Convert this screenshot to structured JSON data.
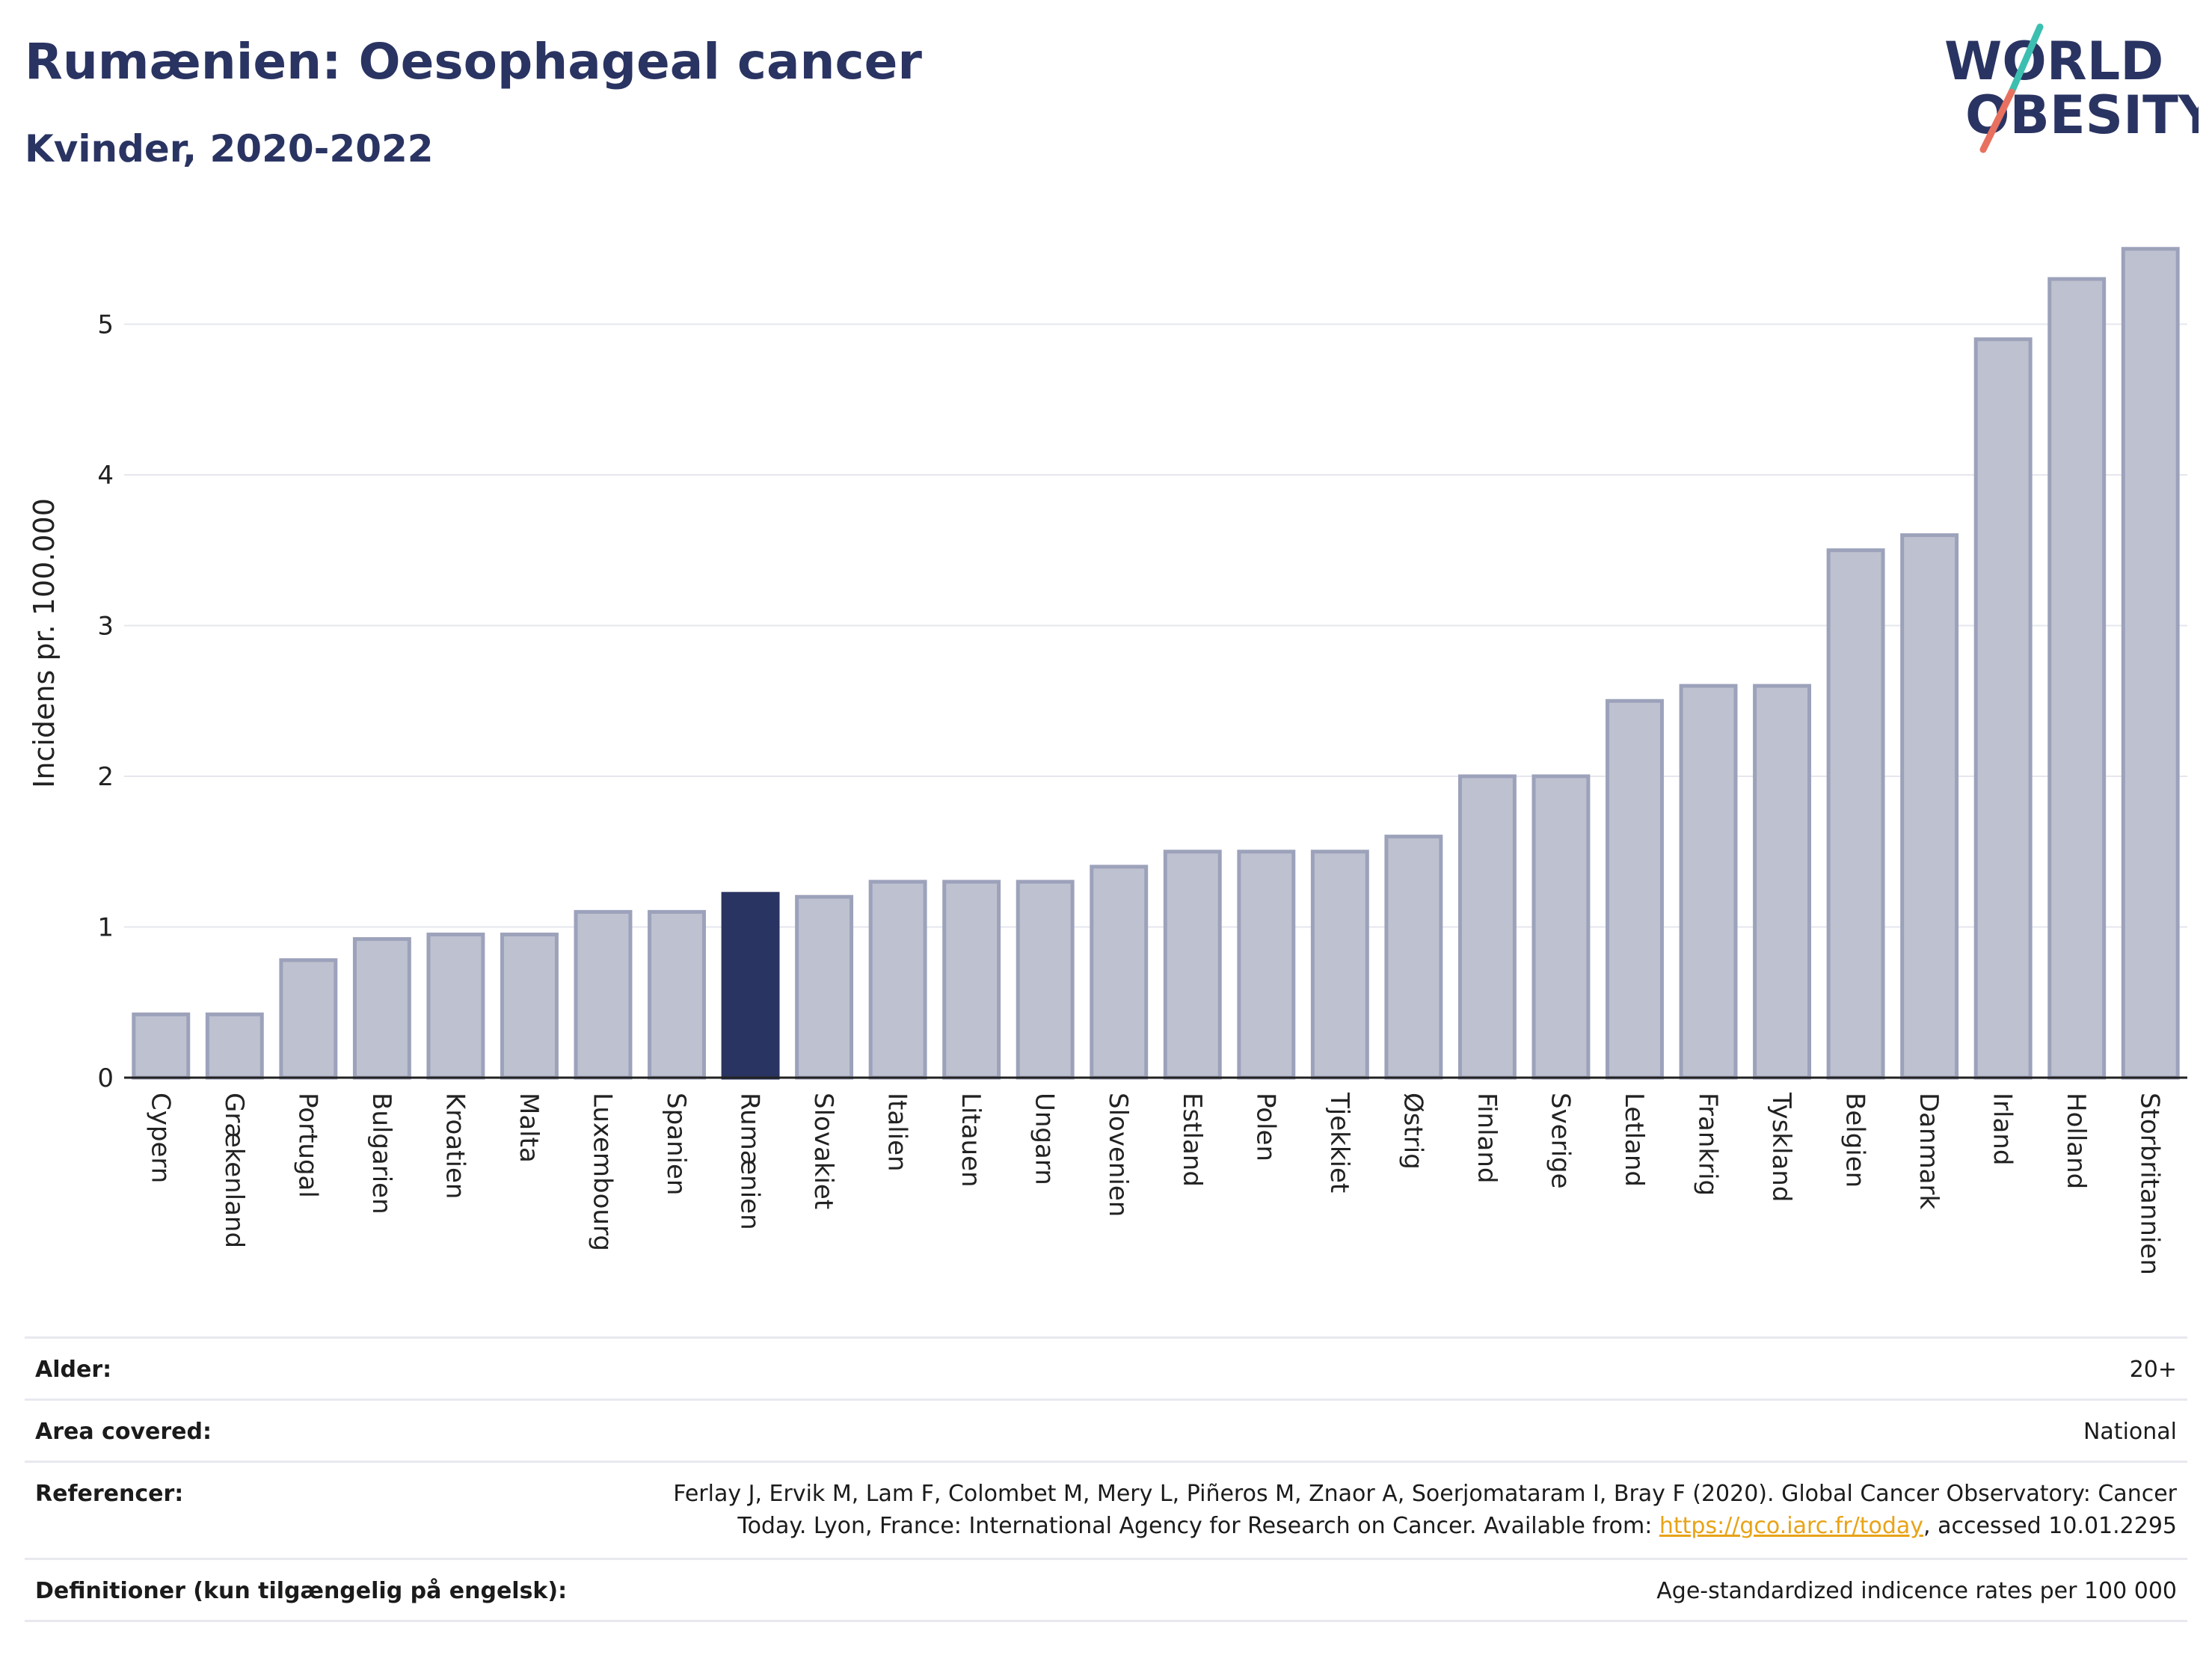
{
  "header": {
    "title": "Rumænien: Oesophageal cancer",
    "subtitle": "Kvinder, 2020-2022"
  },
  "logo": {
    "line1": "WORLD",
    "line2": "OBESITY"
  },
  "colors": {
    "highlight": "#2a3462",
    "bar_fill": "#bec1cf",
    "bar_stroke": "#9da2bb",
    "title": "#2a3462",
    "logo_teal": "#3cbfb0",
    "logo_coral": "#e8705f",
    "link": "#e8a317"
  },
  "chart_data": {
    "type": "bar",
    "categories": [
      "Cypern",
      "Grækenland",
      "Portugal",
      "Bulgarien",
      "Kroatien",
      "Malta",
      "Luxembourg",
      "Spanien",
      "Rumænien",
      "Slovakiet",
      "Italien",
      "Litauen",
      "Ungarn",
      "Slovenien",
      "Estland",
      "Polen",
      "Tjekkiet",
      "Østrig",
      "Finland",
      "Sverige",
      "Letland",
      "Frankrig",
      "Tyskland",
      "Belgien",
      "Danmark",
      "Irland",
      "Holland",
      "Storbritannien"
    ],
    "values": [
      0.42,
      0.42,
      0.78,
      0.92,
      0.95,
      0.95,
      1.1,
      1.1,
      1.22,
      1.2,
      1.3,
      1.3,
      1.3,
      1.4,
      1.5,
      1.5,
      1.5,
      1.6,
      2.0,
      2.0,
      2.5,
      2.6,
      2.6,
      3.5,
      3.6,
      4.9,
      5.3,
      5.5
    ],
    "highlight": "Rumænien",
    "ylabel": "Incidens pr. 100.000",
    "xlabel": "",
    "yticks": [
      "0",
      "1",
      "2",
      "3",
      "4",
      "5"
    ],
    "ylim": [
      0,
      5.6
    ],
    "grid": true
  },
  "meta": [
    {
      "key": "Alder:",
      "value": "20+"
    },
    {
      "key": "Area covered:",
      "value": "National"
    },
    {
      "key": "Referencer:",
      "line1": "Ferlay J, Ervik M, Lam F, Colombet M, Mery L, Piñeros M, Znaor A, Soerjomataram I, Bray F (2020). Global Cancer Observatory: Cancer",
      "line2_pre": "Today. Lyon, France: International Agency for Research on Cancer. Available from: ",
      "link": "https://gco.iarc.fr/today",
      "line2_post": ", accessed 10.01.2295"
    },
    {
      "key": "Definitioner (kun tilgængelig på engelsk):",
      "value": "Age-standardized indicence rates per 100 000"
    }
  ]
}
